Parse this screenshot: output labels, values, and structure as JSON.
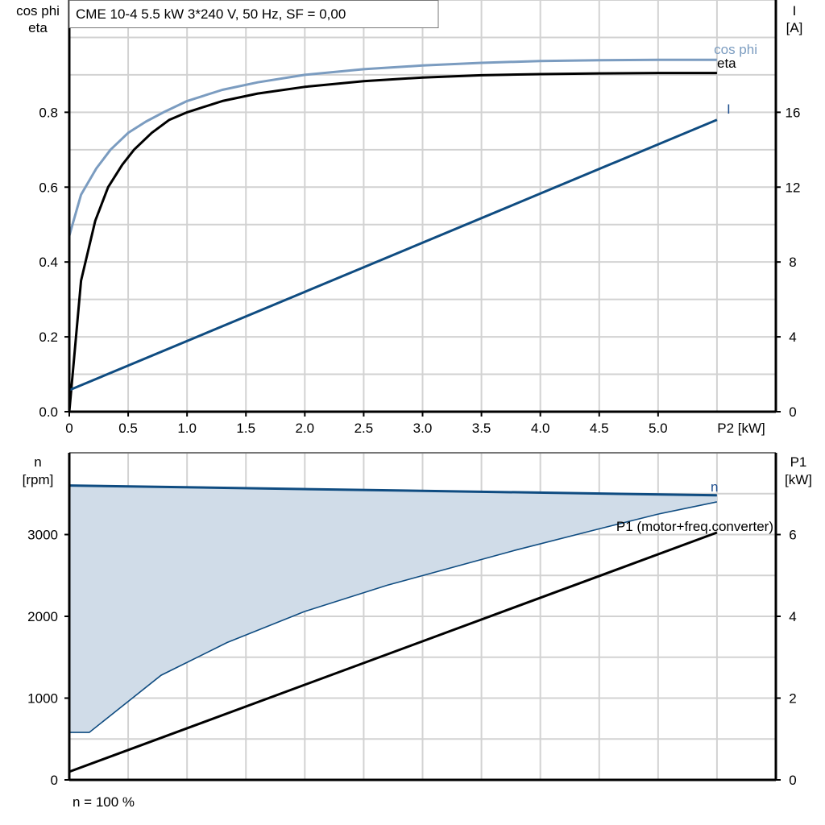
{
  "title": "CME 10-4   5.5 kW   3*240 V, 50 Hz, SF = 0,00",
  "footer_note": "n = 100 %",
  "chart_data": [
    {
      "type": "line",
      "ylabel_left": [
        "cos phi",
        "eta"
      ],
      "ylabel_right": [
        "I",
        "[A]"
      ],
      "xlabel": "P2 [kW]",
      "x_ticks": [
        "0",
        "0.5",
        "1.0",
        "1.5",
        "2.0",
        "2.5",
        "3.0",
        "3.5",
        "4.0",
        "4.5",
        "5.0"
      ],
      "y_left_ticks": [
        "0.0",
        "0.2",
        "0.4",
        "0.6",
        "0.8"
      ],
      "y_right_ticks": [
        "0",
        "4",
        "8",
        "12",
        "16"
      ],
      "xlim": [
        0,
        6.0
      ],
      "ylim_left": [
        0,
        1.1
      ],
      "ylim_right": [
        0,
        22
      ],
      "grid": true,
      "series": [
        {
          "name": "cos phi",
          "axis": "left",
          "color": "#7b9cc0",
          "x": [
            0,
            0.1,
            0.23,
            0.35,
            0.5,
            0.65,
            0.8,
            1.0,
            1.3,
            1.6,
            2.0,
            2.5,
            3.0,
            3.5,
            4.0,
            4.5,
            5.0,
            5.5
          ],
          "y": [
            0.47,
            0.58,
            0.65,
            0.7,
            0.745,
            0.775,
            0.8,
            0.83,
            0.86,
            0.88,
            0.9,
            0.915,
            0.925,
            0.932,
            0.937,
            0.939,
            0.94,
            0.94
          ]
        },
        {
          "name": "eta",
          "axis": "left",
          "color": "#000000",
          "x": [
            0,
            0.1,
            0.22,
            0.33,
            0.45,
            0.55,
            0.7,
            0.85,
            1.0,
            1.3,
            1.6,
            2.0,
            2.5,
            3.0,
            3.5,
            4.0,
            4.5,
            5.0,
            5.5
          ],
          "y": [
            0,
            0.35,
            0.51,
            0.6,
            0.66,
            0.7,
            0.745,
            0.78,
            0.8,
            0.83,
            0.85,
            0.868,
            0.883,
            0.893,
            0.899,
            0.902,
            0.904,
            0.905,
            0.905
          ]
        },
        {
          "name": "I",
          "axis": "right",
          "color": "#0f4c81",
          "x": [
            0,
            5.5
          ],
          "y": [
            1.15,
            15.6
          ]
        }
      ]
    },
    {
      "type": "area",
      "ylabel_left": [
        "n",
        "[rpm]"
      ],
      "ylabel_right": [
        "P1",
        "[kW]"
      ],
      "y_left_ticks": [
        "0",
        "1000",
        "2000",
        "3000"
      ],
      "y_right_ticks": [
        "0",
        "2",
        "4",
        "6"
      ],
      "xlim": [
        0,
        6.0
      ],
      "ylim_left": [
        0,
        4000
      ],
      "ylim_right": [
        0,
        8
      ],
      "grid": true,
      "series": [
        {
          "name": "n",
          "axis": "left",
          "color": "#0f4c81",
          "x": [
            0,
            5.5
          ],
          "y": [
            3600,
            3480
          ]
        },
        {
          "name": "n lower limit",
          "axis": "left",
          "color": "#0f4c81",
          "label_hidden": true,
          "x": [
            0,
            0.17,
            0.78,
            1.34,
            2.0,
            2.7,
            3.79,
            4.5,
            5.0,
            5.5
          ],
          "y": [
            580,
            580,
            1280,
            1680,
            2060,
            2380,
            2810,
            3070,
            3250,
            3400
          ]
        },
        {
          "name": "P1 (motor+freq.converter)",
          "axis": "right",
          "color": "#000000",
          "x": [
            0,
            5.5
          ],
          "y": [
            0.2,
            6.05
          ]
        }
      ],
      "fill_color": "#d0dce8"
    }
  ]
}
